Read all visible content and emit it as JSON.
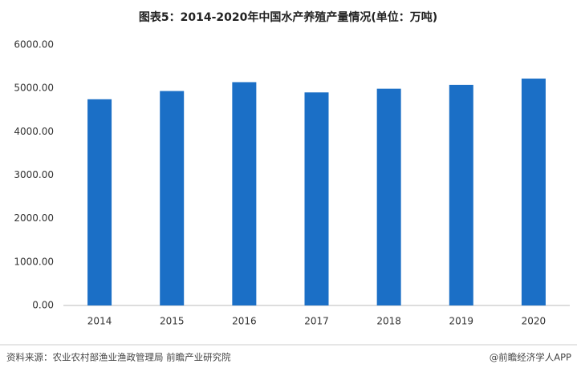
{
  "chart_data": {
    "type": "bar",
    "title": "图表5：2014-2020年中国水产养殖产量情况(单位：万吨)",
    "categories": [
      "2014",
      "2015",
      "2016",
      "2017",
      "2018",
      "2019",
      "2020"
    ],
    "values": [
      4748,
      4938,
      5142,
      4906,
      4991,
      5079,
      5224
    ],
    "color": "#1b6fc6",
    "ylim": [
      0,
      6000
    ],
    "yticks": [
      {
        "value": 0,
        "label": "0.00"
      },
      {
        "value": 1000,
        "label": "1000.00"
      },
      {
        "value": 2000,
        "label": "2000.00"
      },
      {
        "value": 3000,
        "label": "3000.00"
      },
      {
        "value": 4000,
        "label": "4000.00"
      },
      {
        "value": 5000,
        "label": "5000.00"
      },
      {
        "value": 6000,
        "label": "6000.00"
      }
    ],
    "grid": false
  },
  "footer": {
    "source": "资料来源：农业农村部渔业渔政管理局 前瞻产业研究院",
    "brand": "@前瞻经济学人APP"
  }
}
